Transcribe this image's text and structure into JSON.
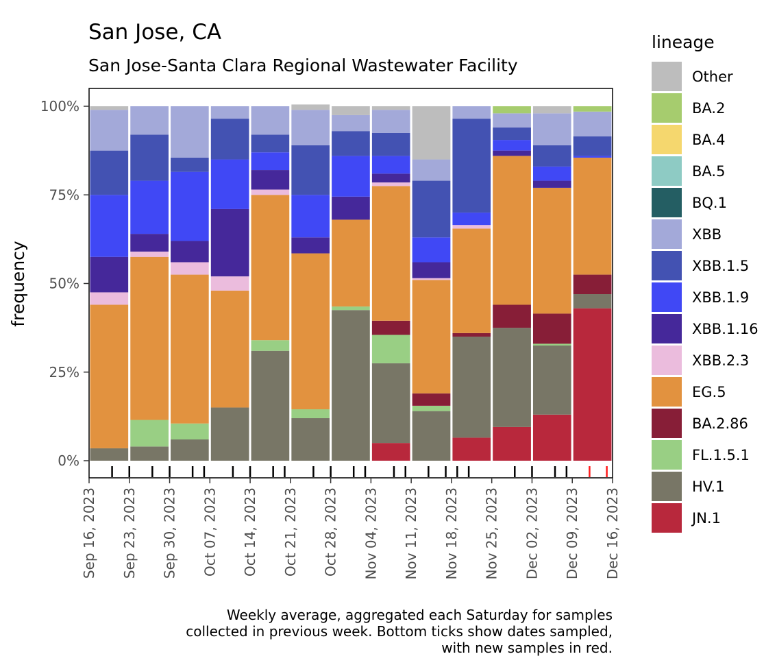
{
  "chart_data": {
    "type": "stacked-bar",
    "title": "San Jose, CA",
    "subtitle": "San Jose-Santa Clara Regional Wastewater Facility",
    "ylabel": "frequency",
    "xlabel": "",
    "ylim": [
      0,
      100
    ],
    "y_ticks": [
      "0%",
      "25%",
      "50%",
      "75%",
      "100%"
    ],
    "x_ticks": [
      "Sep 16, 2023",
      "Sep 23, 2023",
      "Sep 30, 2023",
      "Oct 07, 2023",
      "Oct 14, 2023",
      "Oct 21, 2023",
      "Oct 28, 2023",
      "Nov 04, 2023",
      "Nov 11, 2023",
      "Nov 18, 2023",
      "Nov 25, 2023",
      "Dec 02, 2023",
      "Dec 09, 2023",
      "Dec 16, 2023"
    ],
    "legend_title": "lineage",
    "legend_position": "right",
    "lineages": [
      {
        "name": "Other",
        "color": "#bdbdbd"
      },
      {
        "name": "BA.2",
        "color": "#a6cc6e"
      },
      {
        "name": "BA.4",
        "color": "#f5d76e"
      },
      {
        "name": "BA.5",
        "color": "#8ecbc4"
      },
      {
        "name": "BQ.1",
        "color": "#245e63"
      },
      {
        "name": "XBB",
        "color": "#a3a9d9"
      },
      {
        "name": "XBB.1.5",
        "color": "#4352b2"
      },
      {
        "name": "XBB.1.9",
        "color": "#4048f5"
      },
      {
        "name": "XBB.1.16",
        "color": "#45289a"
      },
      {
        "name": "XBB.2.3",
        "color": "#ebbcdd"
      },
      {
        "name": "EG.5",
        "color": "#e2923f"
      },
      {
        "name": "BA.2.86",
        "color": "#871e37"
      },
      {
        "name": "FL.1.5.1",
        "color": "#99cf84"
      },
      {
        "name": "HV.1",
        "color": "#787666"
      },
      {
        "name": "JN.1",
        "color": "#b8283c"
      }
    ],
    "stack_order_bottom_to_top": [
      "JN.1",
      "HV.1",
      "FL.1.5.1",
      "BA.2.86",
      "EG.5",
      "XBB.2.3",
      "XBB.1.16",
      "XBB.1.9",
      "XBB.1.5",
      "XBB",
      "BQ.1",
      "BA.5",
      "BA.4",
      "BA.2",
      "Other"
    ],
    "weeks": [
      {
        "week_ending": "Sep 23, 2023",
        "values": {
          "JN.1": 0,
          "HV.1": 3.5,
          "FL.1.5.1": 0,
          "BA.2.86": 0,
          "EG.5": 40.5,
          "XBB.2.3": 3.5,
          "XBB.1.16": 10,
          "XBB.1.9": 17.5,
          "XBB.1.5": 12.5,
          "XBB": 11.5,
          "BQ.1": 0,
          "BA.5": 0,
          "BA.4": 0,
          "BA.2": 0,
          "Other": 1
        }
      },
      {
        "week_ending": "Sep 30, 2023",
        "values": {
          "JN.1": 0,
          "HV.1": 4,
          "FL.1.5.1": 7.5,
          "BA.2.86": 0,
          "EG.5": 46,
          "XBB.2.3": 1.5,
          "XBB.1.16": 5,
          "XBB.1.9": 15,
          "XBB.1.5": 13,
          "XBB": 8,
          "BQ.1": 0,
          "BA.5": 0,
          "BA.4": 0,
          "BA.2": 0,
          "Other": 0
        }
      },
      {
        "week_ending": "Oct 07, 2023",
        "values": {
          "JN.1": 0,
          "HV.1": 6,
          "FL.1.5.1": 4.5,
          "BA.2.86": 0,
          "EG.5": 42,
          "XBB.2.3": 3.5,
          "XBB.1.16": 6,
          "XBB.1.9": 19.5,
          "XBB.1.5": 4,
          "XBB": 14.5,
          "BQ.1": 0,
          "BA.5": 0,
          "BA.4": 0,
          "BA.2": 0,
          "Other": 0
        }
      },
      {
        "week_ending": "Oct 14, 2023",
        "values": {
          "JN.1": 0,
          "HV.1": 15,
          "FL.1.5.1": 0,
          "BA.2.86": 0,
          "EG.5": 33,
          "XBB.2.3": 4,
          "XBB.1.16": 19,
          "XBB.1.9": 14,
          "XBB.1.5": 11.5,
          "XBB": 3.5,
          "BQ.1": 0,
          "BA.5": 0,
          "BA.4": 0,
          "BA.2": 0,
          "Other": 0
        }
      },
      {
        "week_ending": "Oct 21, 2023",
        "values": {
          "JN.1": 0,
          "HV.1": 31,
          "FL.1.5.1": 3,
          "BA.2.86": 0,
          "EG.5": 41,
          "XBB.2.3": 1.5,
          "XBB.1.16": 5.5,
          "XBB.1.9": 5,
          "XBB.1.5": 5,
          "XBB": 8,
          "BQ.1": 0,
          "BA.5": 0,
          "BA.4": 0,
          "BA.2": 0,
          "Other": 0
        }
      },
      {
        "week_ending": "Oct 28, 2023",
        "values": {
          "JN.1": 0,
          "HV.1": 12,
          "FL.1.5.1": 2.5,
          "BA.2.86": 0,
          "EG.5": 44,
          "XBB.2.3": 0,
          "XBB.1.16": 4.5,
          "XBB.1.9": 12,
          "XBB.1.5": 14,
          "XBB": 10,
          "BQ.1": 0,
          "BA.5": 0,
          "BA.4": 0,
          "BA.2": 0,
          "Other": 1.5
        }
      },
      {
        "week_ending": "Nov 04, 2023",
        "values": {
          "JN.1": 0,
          "HV.1": 42.5,
          "FL.1.5.1": 1,
          "BA.2.86": 0,
          "EG.5": 24.5,
          "XBB.2.3": 0,
          "XBB.1.16": 6.5,
          "XBB.1.9": 11.5,
          "XBB.1.5": 7,
          "XBB": 4.5,
          "BQ.1": 0,
          "BA.5": 0,
          "BA.4": 0,
          "BA.2": 0,
          "Other": 2.5
        }
      },
      {
        "week_ending": "Nov 11, 2023",
        "values": {
          "JN.1": 5,
          "HV.1": 22.5,
          "FL.1.5.1": 8,
          "BA.2.86": 4,
          "EG.5": 38,
          "XBB.2.3": 1,
          "XBB.1.16": 2.5,
          "XBB.1.9": 5,
          "XBB.1.5": 6.5,
          "XBB": 6.5,
          "BQ.1": 0,
          "BA.5": 0,
          "BA.4": 0,
          "BA.2": 0,
          "Other": 1
        }
      },
      {
        "week_ending": "Nov 18, 2023",
        "values": {
          "JN.1": 0,
          "HV.1": 14,
          "FL.1.5.1": 1.5,
          "BA.2.86": 3.5,
          "EG.5": 32,
          "XBB.2.3": 0.5,
          "XBB.1.16": 4.5,
          "XBB.1.9": 7,
          "XBB.1.5": 16,
          "XBB": 6,
          "BQ.1": 0,
          "BA.5": 0,
          "BA.4": 0,
          "BA.2": 0,
          "Other": 15
        }
      },
      {
        "week_ending": "Nov 25, 2023",
        "values": {
          "JN.1": 6.5,
          "HV.1": 28.5,
          "FL.1.5.1": 0,
          "BA.2.86": 1,
          "EG.5": 29.5,
          "XBB.2.3": 1,
          "XBB.1.16": 0,
          "XBB.1.9": 3.5,
          "XBB.1.5": 26.5,
          "XBB": 3.5,
          "BQ.1": 0,
          "BA.5": 0,
          "BA.4": 0,
          "BA.2": 0,
          "Other": 0
        }
      },
      {
        "week_ending": "Dec 02, 2023",
        "values": {
          "JN.1": 9.5,
          "HV.1": 28,
          "FL.1.5.1": 0,
          "BA.2.86": 6.5,
          "EG.5": 42,
          "XBB.2.3": 0,
          "XBB.1.16": 1.5,
          "XBB.1.9": 3,
          "XBB.1.5": 3.5,
          "XBB": 4,
          "BQ.1": 0,
          "BA.5": 0,
          "BA.4": 0,
          "BA.2": 2,
          "Other": 0
        }
      },
      {
        "week_ending": "Dec 09, 2023",
        "values": {
          "JN.1": 13,
          "HV.1": 19.5,
          "FL.1.5.1": 0.5,
          "BA.2.86": 8.5,
          "EG.5": 35.5,
          "XBB.2.3": 0,
          "XBB.1.16": 2,
          "XBB.1.9": 4,
          "XBB.1.5": 6,
          "XBB": 9,
          "BQ.1": 0,
          "BA.5": 0,
          "BA.4": 0,
          "BA.2": 0,
          "Other": 2
        }
      },
      {
        "week_ending": "Dec 16, 2023",
        "values": {
          "JN.1": 43,
          "HV.1": 4,
          "FL.1.5.1": 0,
          "BA.2.86": 5.5,
          "EG.5": 33,
          "XBB.2.3": 0,
          "XBB.1.16": 0,
          "XBB.1.9": 0.5,
          "XBB.1.5": 5.5,
          "XBB": 7,
          "BQ.1": 0,
          "BA.5": 0,
          "BA.4": 0,
          "BA.2": 1.5,
          "Other": 0
        }
      }
    ],
    "sample_dates": [
      {
        "date": "Sep 20, 2023",
        "new": false
      },
      {
        "date": "Sep 23, 2023",
        "new": false
      },
      {
        "date": "Sep 27, 2023",
        "new": false
      },
      {
        "date": "Sep 30, 2023",
        "new": false
      },
      {
        "date": "Oct 04, 2023",
        "new": false
      },
      {
        "date": "Oct 06, 2023",
        "new": false
      },
      {
        "date": "Oct 11, 2023",
        "new": false
      },
      {
        "date": "Oct 14, 2023",
        "new": false
      },
      {
        "date": "Oct 18, 2023",
        "new": false
      },
      {
        "date": "Oct 20, 2023",
        "new": false
      },
      {
        "date": "Oct 25, 2023",
        "new": false
      },
      {
        "date": "Oct 28, 2023",
        "new": false
      },
      {
        "date": "Nov 01, 2023",
        "new": false
      },
      {
        "date": "Nov 03, 2023",
        "new": false
      },
      {
        "date": "Nov 08, 2023",
        "new": false
      },
      {
        "date": "Nov 10, 2023",
        "new": false
      },
      {
        "date": "Nov 14, 2023",
        "new": false
      },
      {
        "date": "Nov 17, 2023",
        "new": false
      },
      {
        "date": "Nov 19, 2023",
        "new": false
      },
      {
        "date": "Nov 21, 2023",
        "new": false
      },
      {
        "date": "Nov 29, 2023",
        "new": false
      },
      {
        "date": "Dec 02, 2023",
        "new": false
      },
      {
        "date": "Dec 06, 2023",
        "new": false
      },
      {
        "date": "Dec 08, 2023",
        "new": false
      },
      {
        "date": "Dec 12, 2023",
        "new": true
      },
      {
        "date": "Dec 15, 2023",
        "new": true
      }
    ],
    "caption": [
      "Weekly average, aggregated each Saturday for samples",
      "collected in previous week. Bottom ticks show dates sampled,",
      "with new samples in red."
    ]
  }
}
